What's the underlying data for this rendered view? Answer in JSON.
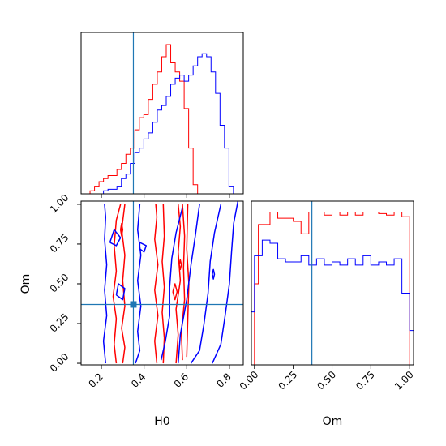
{
  "chart_data": {
    "type": "corner",
    "parameters": [
      "H0",
      "Om"
    ],
    "truths": {
      "H0": 0.35,
      "Om": 0.37
    },
    "colors": {
      "series_a": "#ff0000",
      "series_b": "#0000ff",
      "truth": "#1f77b4"
    },
    "panels": [
      {
        "id": "hist_H0",
        "type": "histogram",
        "xlim": [
          0.105,
          0.865
        ],
        "ylim": [
          0,
          1.06
        ],
        "y_ticks_shown": false,
        "x_tick_values": [
          0.2,
          0.4,
          0.6,
          0.8
        ],
        "x_tick_labels_shown": false,
        "bin_edges": [
          0.105,
          0.126,
          0.147,
          0.168,
          0.189,
          0.21,
          0.231,
          0.252,
          0.273,
          0.294,
          0.315,
          0.336,
          0.357,
          0.378,
          0.399,
          0.42,
          0.441,
          0.462,
          0.483,
          0.504,
          0.525,
          0.546,
          0.567,
          0.588,
          0.609,
          0.63,
          0.651,
          0.672,
          0.693,
          0.714,
          0.735,
          0.756,
          0.777,
          0.798,
          0.819,
          0.84,
          0.861
        ],
        "series": [
          {
            "name": "",
            "color": "#ff0000",
            "counts": [
              0,
              0,
              0.02,
              0.05,
              0.08,
              0.1,
              0.12,
              0.12,
              0.16,
              0.2,
              0.26,
              0.3,
              0.42,
              0.5,
              0.52,
              0.62,
              0.72,
              0.8,
              0.9,
              0.98,
              0.86,
              0.8,
              0.74,
              0.56,
              0.3,
              0.06,
              0,
              0,
              0,
              0,
              0,
              0,
              0,
              0,
              0,
              0
            ]
          },
          {
            "name": "",
            "color": "#0000ff",
            "counts": [
              0,
              0,
              0,
              0,
              0,
              0.02,
              0.03,
              0.03,
              0.05,
              0.1,
              0.13,
              0.2,
              0.27,
              0.3,
              0.36,
              0.4,
              0.47,
              0.55,
              0.58,
              0.64,
              0.72,
              0.76,
              0.78,
              0.74,
              0.78,
              0.84,
              0.9,
              0.92,
              0.9,
              0.8,
              0.66,
              0.45,
              0.3,
              0.05,
              0,
              0
            ]
          }
        ]
      },
      {
        "id": "contour_H0_Om",
        "type": "contour",
        "xlabel": "H0",
        "ylabel": "Om",
        "xlim": [
          0.105,
          0.865
        ],
        "ylim": [
          -0.01,
          1.02
        ],
        "x_tick_values": [
          0.2,
          0.4,
          0.6,
          0.8
        ],
        "x_tick_labels": [
          "0.2",
          "0.4",
          "0.6",
          "0.8"
        ],
        "y_tick_values": [
          0.0,
          0.25,
          0.5,
          0.75,
          1.0
        ],
        "y_tick_labels": [
          "0.00",
          "0.25",
          "0.50",
          "0.75",
          "1.00"
        ],
        "series": [
          {
            "name": "",
            "color": "#ff0000",
            "contours": [
              [
                [
                  0.27,
                  0.0
                ],
                [
                  0.26,
                  0.12
                ],
                [
                  0.27,
                  0.28
                ],
                [
                  0.255,
                  0.42
                ],
                [
                  0.27,
                  0.58
                ],
                [
                  0.26,
                  0.74
                ],
                [
                  0.27,
                  0.9
                ],
                [
                  0.29,
                  1.0
                ]
              ],
              [
                [
                  0.3,
                  0.0
                ],
                [
                  0.31,
                  0.1
                ],
                [
                  0.295,
                  0.22
                ],
                [
                  0.31,
                  0.36
                ],
                [
                  0.3,
                  0.52
                ],
                [
                  0.31,
                  0.68
                ],
                [
                  0.295,
                  0.84
                ],
                [
                  0.31,
                  1.0
                ]
              ],
              [
                [
                  0.46,
                  0.0
                ],
                [
                  0.45,
                  0.14
                ],
                [
                  0.465,
                  0.3
                ],
                [
                  0.45,
                  0.46
                ],
                [
                  0.465,
                  0.62
                ],
                [
                  0.45,
                  0.78
                ],
                [
                  0.46,
                  0.92
                ],
                [
                  0.455,
                  1.0
                ]
              ],
              [
                [
                  0.49,
                  0.0
                ],
                [
                  0.495,
                  0.16
                ],
                [
                  0.485,
                  0.32
                ],
                [
                  0.495,
                  0.48
                ],
                [
                  0.485,
                  0.64
                ],
                [
                  0.495,
                  0.8
                ],
                [
                  0.49,
                  1.0
                ]
              ],
              [
                [
                  0.55,
                  0.0
                ],
                [
                  0.56,
                  0.18
                ],
                [
                  0.55,
                  0.34
                ],
                [
                  0.57,
                  0.52
                ],
                [
                  0.56,
                  0.7
                ],
                [
                  0.57,
                  0.86
                ],
                [
                  0.56,
                  1.0
                ]
              ],
              [
                [
                  0.58,
                  0.02
                ],
                [
                  0.575,
                  0.2
                ],
                [
                  0.59,
                  0.4
                ],
                [
                  0.585,
                  0.6
                ],
                [
                  0.59,
                  0.8
                ],
                [
                  0.58,
                  1.0
                ]
              ],
              [
                [
                  0.6,
                  0.04
                ],
                [
                  0.605,
                  0.28
                ],
                [
                  0.61,
                  0.5
                ],
                [
                  0.6,
                  0.72
                ],
                [
                  0.605,
                  1.0
                ]
              ],
              [
                [
                  0.535,
                  0.45
                ],
                [
                  0.545,
                  0.4
                ],
                [
                  0.555,
                  0.45
                ],
                [
                  0.545,
                  0.5
                ],
                [
                  0.535,
                  0.45
                ]
              ],
              [
                [
                  0.565,
                  0.62
                ],
                [
                  0.57,
                  0.59
                ],
                [
                  0.575,
                  0.62
                ],
                [
                  0.57,
                  0.65
                ],
                [
                  0.565,
                  0.62
                ]
              ],
              [
                [
                  0.29,
                  0.84
                ],
                [
                  0.295,
                  0.8
                ],
                [
                  0.3,
                  0.84
                ],
                [
                  0.295,
                  0.88
                ],
                [
                  0.29,
                  0.84
                ]
              ]
            ]
          },
          {
            "name": "",
            "color": "#0000ff",
            "contours": [
              [
                [
                  0.22,
                  0.0
                ],
                [
                  0.21,
                  0.14
                ],
                [
                  0.225,
                  0.3
                ],
                [
                  0.215,
                  0.46
                ],
                [
                  0.225,
                  0.62
                ],
                [
                  0.215,
                  0.78
                ],
                [
                  0.22,
                  0.92
                ],
                [
                  0.215,
                  1.0
                ]
              ],
              [
                [
                  0.36,
                  0.0
                ],
                [
                  0.38,
                  0.08
                ],
                [
                  0.37,
                  0.2
                ],
                [
                  0.385,
                  0.36
                ],
                [
                  0.37,
                  0.52
                ],
                [
                  0.385,
                  0.68
                ],
                [
                  0.37,
                  0.84
                ],
                [
                  0.38,
                  1.0
                ]
              ],
              [
                [
                  0.48,
                  0.02
                ],
                [
                  0.5,
                  0.14
                ],
                [
                  0.52,
                  0.3
                ],
                [
                  0.52,
                  0.48
                ],
                [
                  0.53,
                  0.66
                ],
                [
                  0.55,
                  0.82
                ],
                [
                  0.58,
                  0.98
                ]
              ],
              [
                [
                  0.56,
                  0.0
                ],
                [
                  0.57,
                  0.18
                ],
                [
                  0.6,
                  0.4
                ],
                [
                  0.62,
                  0.62
                ],
                [
                  0.64,
                  0.8
                ],
                [
                  0.66,
                  1.0
                ]
              ],
              [
                [
                  0.62,
                  0.0
                ],
                [
                  0.66,
                  0.08
                ],
                [
                  0.68,
                  0.24
                ],
                [
                  0.7,
                  0.44
                ],
                [
                  0.71,
                  0.64
                ],
                [
                  0.73,
                  0.82
                ],
                [
                  0.76,
                  1.0
                ]
              ],
              [
                [
                  0.72,
                  0.0
                ],
                [
                  0.76,
                  0.12
                ],
                [
                  0.78,
                  0.3
                ],
                [
                  0.8,
                  0.5
                ],
                [
                  0.81,
                  0.7
                ],
                [
                  0.82,
                  0.88
                ],
                [
                  0.84,
                  1.02
                ]
              ],
              [
                [
                  0.24,
                  0.76
                ],
                [
                  0.27,
                  0.74
                ],
                [
                  0.29,
                  0.79
                ],
                [
                  0.26,
                  0.84
                ],
                [
                  0.24,
                  0.76
                ]
              ],
              [
                [
                  0.27,
                  0.43
                ],
                [
                  0.3,
                  0.4
                ],
                [
                  0.31,
                  0.47
                ],
                [
                  0.28,
                  0.5
                ],
                [
                  0.27,
                  0.43
                ]
              ],
              [
                [
                  0.38,
                  0.72
                ],
                [
                  0.4,
                  0.7
                ],
                [
                  0.41,
                  0.74
                ],
                [
                  0.38,
                  0.76
                ],
                [
                  0.38,
                  0.72
                ]
              ],
              [
                [
                  0.72,
                  0.56
                ],
                [
                  0.725,
                  0.53
                ],
                [
                  0.73,
                  0.56
                ],
                [
                  0.725,
                  0.59
                ],
                [
                  0.72,
                  0.56
                ]
              ]
            ]
          }
        ]
      },
      {
        "id": "hist_Om",
        "type": "histogram",
        "xlabel": "Om",
        "xlim": [
          -0.02,
          1.025
        ],
        "ylim": [
          0,
          1.05
        ],
        "y_ticks_shown": false,
        "x_tick_values": [
          0.0,
          0.25,
          0.5,
          0.75,
          1.0
        ],
        "x_tick_labels": [
          "0.00",
          "0.25",
          "0.50",
          "0.75",
          "1.00"
        ],
        "bin_edges": [
          -0.02,
          0.0,
          0.025,
          0.05,
          0.1,
          0.15,
          0.2,
          0.25,
          0.3,
          0.35,
          0.4,
          0.45,
          0.5,
          0.55,
          0.6,
          0.65,
          0.7,
          0.75,
          0.8,
          0.85,
          0.9,
          0.95,
          1.0,
          1.025
        ],
        "series": [
          {
            "name": "",
            "color": "#ff0000",
            "counts": [
              0,
              0.52,
              0.9,
              0.9,
              0.98,
              0.94,
              0.94,
              0.92,
              0.84,
              0.98,
              0.98,
              0.96,
              0.98,
              0.96,
              0.98,
              0.96,
              0.98,
              0.98,
              0.97,
              0.96,
              0.98,
              0.95,
              0
            ]
          },
          {
            "name": "",
            "color": "#0000ff",
            "counts": [
              0.34,
              0.7,
              0.7,
              0.8,
              0.78,
              0.68,
              0.66,
              0.66,
              0.7,
              0.64,
              0.68,
              0.64,
              0.66,
              0.64,
              0.68,
              0.64,
              0.7,
              0.64,
              0.66,
              0.64,
              0.68,
              0.46,
              0.22
            ]
          }
        ]
      }
    ]
  }
}
